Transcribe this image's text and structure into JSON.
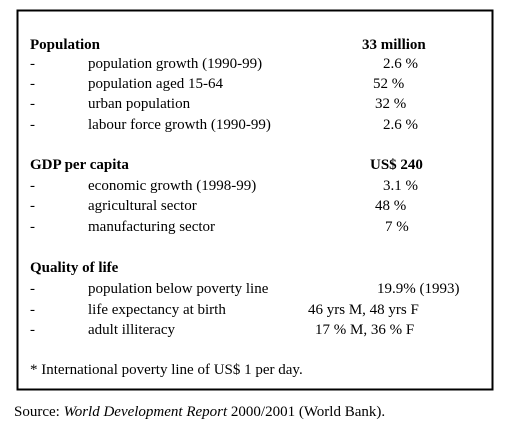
{
  "sections": [
    {
      "heading": "Population",
      "heading_value": "33 million",
      "rows": [
        [
          "-",
          "population growth (1990-99)",
          "2.6 %"
        ],
        [
          "-",
          "population aged 15-64",
          "52 %"
        ],
        [
          "-",
          "urban population",
          "32 %"
        ],
        [
          "-",
          "labour force growth (1990-99)",
          "2.6 %"
        ]
      ]
    },
    {
      "heading": "GDP per capita",
      "heading_value": "US$ 240",
      "rows": [
        [
          "-",
          "economic growth (1998-99)",
          "3.1 %"
        ],
        [
          "-",
          "agricultural sector",
          "48 %"
        ],
        [
          "-",
          "manufacturing sector",
          "7 %"
        ]
      ]
    },
    {
      "heading": "Quality of life",
      "heading_value": null,
      "rows": [
        [
          "-",
          "population below poverty line",
          "19.9% (1993)"
        ],
        [
          "-",
          "life expectancy at birth",
          "46 yrs M, 48 yrs F"
        ],
        [
          "-",
          "adult illiteracy",
          "17 % M, 36 % F"
        ]
      ]
    }
  ],
  "footnote": "* International poverty line of US$ 1 per day.",
  "source": {
    "prefix": "Source:",
    "title": "World Development Report",
    "suffix": "2000/2001 (World Bank)."
  }
}
